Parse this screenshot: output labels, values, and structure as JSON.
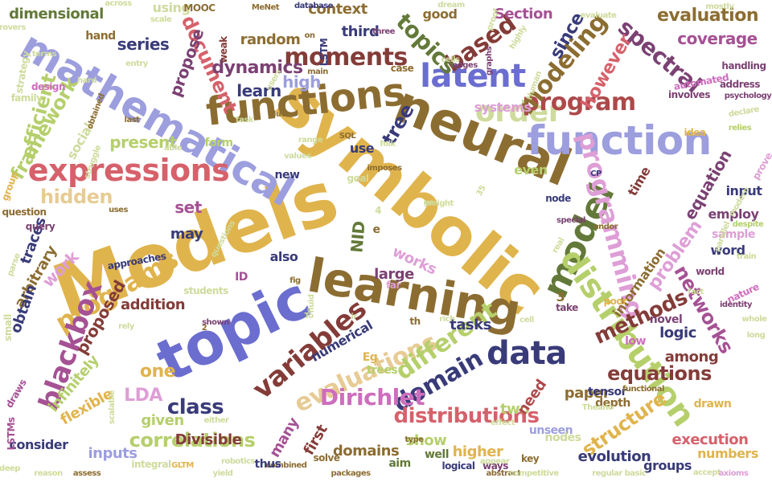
{
  "palette": {
    "gold": "#e0b44d",
    "olive": "#8c6d31",
    "blue": "#6b6ecf",
    "periwinkle": "#9c9ede",
    "green": "#637939",
    "lightgreen": "#b5cf6b",
    "sage": "#cedb9c",
    "red": "#d6616b",
    "rose": "#ad494a",
    "maroon": "#843c39",
    "pink": "#de9ed6",
    "plum": "#7b4173",
    "purple": "#a55194",
    "navy": "#393b79",
    "tan": "#e7cb94",
    "lilac": "#ce6dbd"
  },
  "words": [
    {
      "text": "Models",
      "color": "gold"
    },
    {
      "text": "symbolic",
      "color": "gold"
    },
    {
      "text": "neural",
      "color": "olive"
    },
    {
      "text": "learning",
      "color": "olive"
    },
    {
      "text": "topic",
      "color": "blue"
    },
    {
      "text": "function",
      "color": "periwinkle"
    },
    {
      "text": "mathematical",
      "color": "periwinkle"
    },
    {
      "text": "functions",
      "color": "olive"
    },
    {
      "text": "model",
      "color": "green"
    },
    {
      "text": "distribution",
      "color": "lightgreen"
    },
    {
      "text": "latent",
      "color": "blue"
    },
    {
      "text": "expressions",
      "color": "red"
    },
    {
      "text": "programming",
      "color": "pink"
    },
    {
      "text": "variables",
      "color": "maroon"
    },
    {
      "text": "evaluations",
      "color": "tan"
    },
    {
      "text": "programs",
      "color": "gold"
    },
    {
      "text": "blackbox",
      "color": "purple"
    },
    {
      "text": "data",
      "color": "navy"
    },
    {
      "text": "order",
      "color": "sage"
    },
    {
      "text": "moments",
      "color": "maroon"
    },
    {
      "text": "program",
      "color": "rose"
    },
    {
      "text": "modeling",
      "color": "olive"
    },
    {
      "text": "different",
      "color": "lightgreen"
    },
    {
      "text": "domain",
      "color": "navy"
    },
    {
      "text": "Dirichlet",
      "color": "lilac"
    },
    {
      "text": "distributions",
      "color": "red"
    },
    {
      "text": "based",
      "color": "maroon"
    },
    {
      "text": "topics",
      "color": "green"
    },
    {
      "text": "spectral",
      "color": "plum"
    },
    {
      "text": "framework",
      "color": "lightgreen"
    },
    {
      "text": "efficient",
      "color": "lightgreen"
    },
    {
      "text": "hidden",
      "color": "tan"
    },
    {
      "text": "tree",
      "color": "navy"
    },
    {
      "text": "methods",
      "color": "maroon"
    },
    {
      "text": "networks",
      "color": "purple"
    },
    {
      "text": "equations",
      "color": "maroon"
    },
    {
      "text": "structure",
      "color": "gold"
    },
    {
      "text": "correlations",
      "color": "lightgreen"
    },
    {
      "text": "class",
      "color": "navy"
    },
    {
      "text": "document",
      "color": "red"
    },
    {
      "text": "dynamics",
      "color": "plum"
    },
    {
      "text": "high",
      "color": "periwinkle"
    },
    {
      "text": "learn",
      "color": "navy"
    },
    {
      "text": "series",
      "color": "navy"
    },
    {
      "text": "propose",
      "color": "plum"
    },
    {
      "text": "present",
      "color": "lightgreen"
    },
    {
      "text": "evaluation",
      "color": "olive"
    },
    {
      "text": "coverage",
      "color": "purple"
    },
    {
      "text": "since",
      "color": "navy"
    },
    {
      "text": "however",
      "color": "red"
    },
    {
      "text": "problem",
      "color": "pink"
    },
    {
      "text": "equation",
      "color": "plum"
    },
    {
      "text": "work",
      "color": "pink"
    },
    {
      "text": "proposed",
      "color": "maroon"
    },
    {
      "text": "traces",
      "color": "navy"
    },
    {
      "text": "arbitrary",
      "color": "olive"
    },
    {
      "text": "obtain",
      "color": "navy"
    },
    {
      "text": "infinitely",
      "color": "lightgreen"
    },
    {
      "text": "flexible",
      "color": "gold"
    },
    {
      "text": "LDA",
      "color": "pink"
    },
    {
      "text": "one",
      "color": "gold"
    },
    {
      "text": "given",
      "color": "lightgreen"
    },
    {
      "text": "inputs",
      "color": "periwinkle"
    },
    {
      "text": "Divisible",
      "color": "maroon"
    },
    {
      "text": "many",
      "color": "purple"
    },
    {
      "text": "first",
      "color": "maroon"
    },
    {
      "text": "domains",
      "color": "olive"
    },
    {
      "text": "show",
      "color": "lightgreen"
    },
    {
      "text": "higher",
      "color": "gold"
    },
    {
      "text": "execution",
      "color": "red"
    },
    {
      "text": "evolution",
      "color": "navy"
    },
    {
      "text": "paper",
      "color": "olive"
    },
    {
      "text": "two",
      "color": "lightgreen"
    },
    {
      "text": "need",
      "color": "rose"
    },
    {
      "text": "tasks",
      "color": "navy"
    },
    {
      "text": "works",
      "color": "pink"
    },
    {
      "text": "large",
      "color": "plum"
    },
    {
      "text": "NID",
      "color": "green"
    },
    {
      "text": "set",
      "color": "purple"
    },
    {
      "text": "may",
      "color": "navy"
    },
    {
      "text": "addition",
      "color": "maroon"
    },
    {
      "text": "numerical",
      "color": "navy"
    },
    {
      "text": "logic",
      "color": "navy"
    },
    {
      "text": "among",
      "color": "maroon"
    },
    {
      "text": "groups",
      "color": "navy"
    },
    {
      "text": "numbers",
      "color": "gold"
    },
    {
      "text": "word",
      "color": "navy"
    },
    {
      "text": "information",
      "color": "olive"
    },
    {
      "text": "time",
      "color": "maroon"
    },
    {
      "text": "input",
      "color": "navy"
    },
    {
      "text": "employ",
      "color": "plum"
    },
    {
      "text": "sample",
      "color": "pink"
    },
    {
      "text": "context",
      "color": "olive"
    },
    {
      "text": "good",
      "color": "olive"
    },
    {
      "text": "Section",
      "color": "purple"
    },
    {
      "text": "third",
      "color": "navy"
    },
    {
      "text": "random",
      "color": "olive"
    },
    {
      "text": "using",
      "color": "sage"
    },
    {
      "text": "dimensional",
      "color": "green"
    },
    {
      "text": "systems",
      "color": "pink"
    },
    {
      "text": "even",
      "color": "lightgreen"
    },
    {
      "text": "use",
      "color": "navy"
    },
    {
      "text": "social",
      "color": "sage"
    },
    {
      "text": "form",
      "color": "lightgreen"
    },
    {
      "text": "also",
      "color": "navy"
    },
    {
      "text": "consider",
      "color": "navy"
    },
    {
      "text": "well",
      "color": "green"
    },
    {
      "text": "aim",
      "color": "green"
    },
    {
      "text": "depth",
      "color": "olive"
    },
    {
      "text": "tensor",
      "color": "navy"
    },
    {
      "text": "unseen",
      "color": "periwinkle"
    },
    {
      "text": "trees",
      "color": "lightgreen"
    },
    {
      "text": "drawn",
      "color": "gold"
    },
    {
      "text": "novel",
      "color": "plum"
    },
    {
      "text": "low",
      "color": "lilac"
    },
    {
      "text": "nodes",
      "color": "sage"
    },
    {
      "text": "hand",
      "color": "olive"
    },
    {
      "text": "LSTM",
      "color": "navy"
    },
    {
      "text": "MOOC",
      "color": "olive"
    },
    {
      "text": "scale",
      "color": "sage"
    },
    {
      "text": "weak",
      "color": "maroon"
    },
    {
      "text": "case",
      "color": "olive"
    },
    {
      "text": "graphs",
      "color": "plum"
    },
    {
      "text": "strategy",
      "color": "sage"
    },
    {
      "text": "family",
      "color": "sage"
    },
    {
      "text": "design",
      "color": "lilac"
    },
    {
      "text": "terms",
      "color": "sage"
    },
    {
      "text": "automated",
      "color": "lilac"
    },
    {
      "text": "handling",
      "color": "plum"
    },
    {
      "text": "address",
      "color": "plum"
    },
    {
      "text": "psychology",
      "color": "plum"
    },
    {
      "text": "involves",
      "color": "plum"
    },
    {
      "text": "declare",
      "color": "sage"
    },
    {
      "text": "idea",
      "color": "gold"
    },
    {
      "text": "prove",
      "color": "pink"
    },
    {
      "text": "relies",
      "color": "lightgreen"
    },
    {
      "text": "despite",
      "color": "lightgreen"
    },
    {
      "text": "world",
      "color": "plum"
    },
    {
      "text": "nature",
      "color": "lilac"
    },
    {
      "text": "identity",
      "color": "plum"
    },
    {
      "text": "fact",
      "color": "sage"
    },
    {
      "text": "poor",
      "color": "gold"
    },
    {
      "text": "take",
      "color": "plum"
    },
    {
      "text": "real",
      "color": "sage"
    },
    {
      "text": "node",
      "color": "navy"
    },
    {
      "text": "question",
      "color": "olive"
    },
    {
      "text": "query",
      "color": "plum"
    },
    {
      "text": "students",
      "color": "sage"
    },
    {
      "text": "approaches",
      "color": "navy"
    },
    {
      "text": "new",
      "color": "navy"
    },
    {
      "text": "far",
      "color": "pink"
    },
    {
      "text": "goal",
      "color": "sage"
    },
    {
      "text": "key",
      "color": "olive"
    },
    {
      "text": "ways",
      "color": "plum"
    },
    {
      "text": "solve",
      "color": "olive"
    },
    {
      "text": "type",
      "color": "olive"
    },
    {
      "text": "Eg",
      "color": "gold"
    },
    {
      "text": "cell",
      "color": "sage"
    },
    {
      "text": "th",
      "color": "olive"
    },
    {
      "text": "rich",
      "color": "sage"
    },
    {
      "text": "combined",
      "color": "olive"
    },
    {
      "text": "logical",
      "color": "navy"
    },
    {
      "text": "abstract",
      "color": "olive"
    },
    {
      "text": "competitive",
      "color": "sage"
    },
    {
      "text": "regular",
      "color": "sage"
    },
    {
      "text": "basic",
      "color": "sage"
    },
    {
      "text": "accept",
      "color": "sage"
    },
    {
      "text": "axioms",
      "color": "pink"
    },
    {
      "text": "thus",
      "color": "navy"
    },
    {
      "text": "integral",
      "color": "sage"
    },
    {
      "text": "robotics",
      "color": "sage"
    },
    {
      "text": "yield",
      "color": "sage"
    },
    {
      "text": "deep",
      "color": "sage"
    },
    {
      "text": "reason",
      "color": "sage"
    },
    {
      "text": "assess",
      "color": "olive"
    },
    {
      "text": "packages",
      "color": "olive"
    },
    {
      "text": "GLTM",
      "color": "gold"
    },
    {
      "text": "LSTMs",
      "color": "purple"
    },
    {
      "text": "draws",
      "color": "purple"
    },
    {
      "text": "small",
      "color": "sage"
    },
    {
      "text": "parse",
      "color": "sage"
    },
    {
      "text": "group",
      "color": "gold"
    },
    {
      "text": "uses",
      "color": "olive"
    },
    {
      "text": "either",
      "color": "sage"
    },
    {
      "text": "rely",
      "color": "sage"
    },
    {
      "text": "scalable",
      "color": "sage"
    },
    {
      "text": "shown",
      "color": "plum"
    },
    {
      "text": "fluid",
      "color": "sage"
    },
    {
      "text": "fig",
      "color": "olive"
    },
    {
      "text": "weight",
      "color": "sage"
    },
    {
      "text": "special",
      "color": "plum"
    },
    {
      "text": "modern",
      "color": "sage"
    },
    {
      "text": "Theano",
      "color": "sage"
    },
    {
      "text": "effect",
      "color": "sage"
    },
    {
      "text": "long",
      "color": "sage"
    },
    {
      "text": "whole",
      "color": "sage"
    },
    {
      "text": "train",
      "color": "sage"
    },
    {
      "text": "across",
      "color": "sage"
    },
    {
      "text": "database",
      "color": "navy"
    },
    {
      "text": "dream",
      "color": "sage"
    },
    {
      "text": "proof",
      "color": "sage"
    },
    {
      "text": "mostly",
      "color": "sage"
    },
    {
      "text": "evaluate",
      "color": "sage"
    },
    {
      "text": "highly",
      "color": "sage"
    },
    {
      "text": "MeNet",
      "color": "olive"
    },
    {
      "text": "entry",
      "color": "sage"
    },
    {
      "text": "provers",
      "color": "sage"
    },
    {
      "text": "three",
      "color": "plum"
    },
    {
      "text": "edges",
      "color": "plum"
    },
    {
      "text": "main",
      "color": "olive"
    },
    {
      "text": "due",
      "color": "olive"
    },
    {
      "text": "users",
      "color": "sage"
    },
    {
      "text": "cells",
      "color": "sage"
    },
    {
      "text": "task",
      "color": "sage"
    },
    {
      "text": "last",
      "color": "olive"
    },
    {
      "text": "able",
      "color": "sage"
    },
    {
      "text": "obtained",
      "color": "olive"
    },
    {
      "text": "range",
      "color": "sage"
    },
    {
      "text": "values",
      "color": "sage"
    },
    {
      "text": "SQL",
      "color": "olive"
    },
    {
      "text": "folk",
      "color": "sage"
    },
    {
      "text": "imposes",
      "color": "olive"
    },
    {
      "text": "35",
      "color": "sage"
    },
    {
      "text": "CP",
      "color": "navy"
    },
    {
      "text": "andor",
      "color": "olive"
    },
    {
      "text": "struggle",
      "color": "sage"
    },
    {
      "text": "hard",
      "color": "sage"
    },
    {
      "text": "go",
      "color": "sage"
    },
    {
      "text": "4",
      "color": "sage"
    },
    {
      "text": "e",
      "color": "olive"
    },
    {
      "text": "ID",
      "color": "purple"
    },
    {
      "text": "3",
      "color": "olive"
    },
    {
      "text": "2",
      "color": "olive"
    },
    {
      "text": "To",
      "color": "sage"
    },
    {
      "text": "appear",
      "color": "sage"
    },
    {
      "text": "questions",
      "color": "sage"
    },
    {
      "text": "functional",
      "color": "olive"
    },
    {
      "text": "parallel",
      "color": "sage"
    },
    {
      "text": "Human",
      "color": "sage"
    },
    {
      "text": "on",
      "color": "olive"
    },
    {
      "text": "ir",
      "color": "sage"
    }
  ]
}
